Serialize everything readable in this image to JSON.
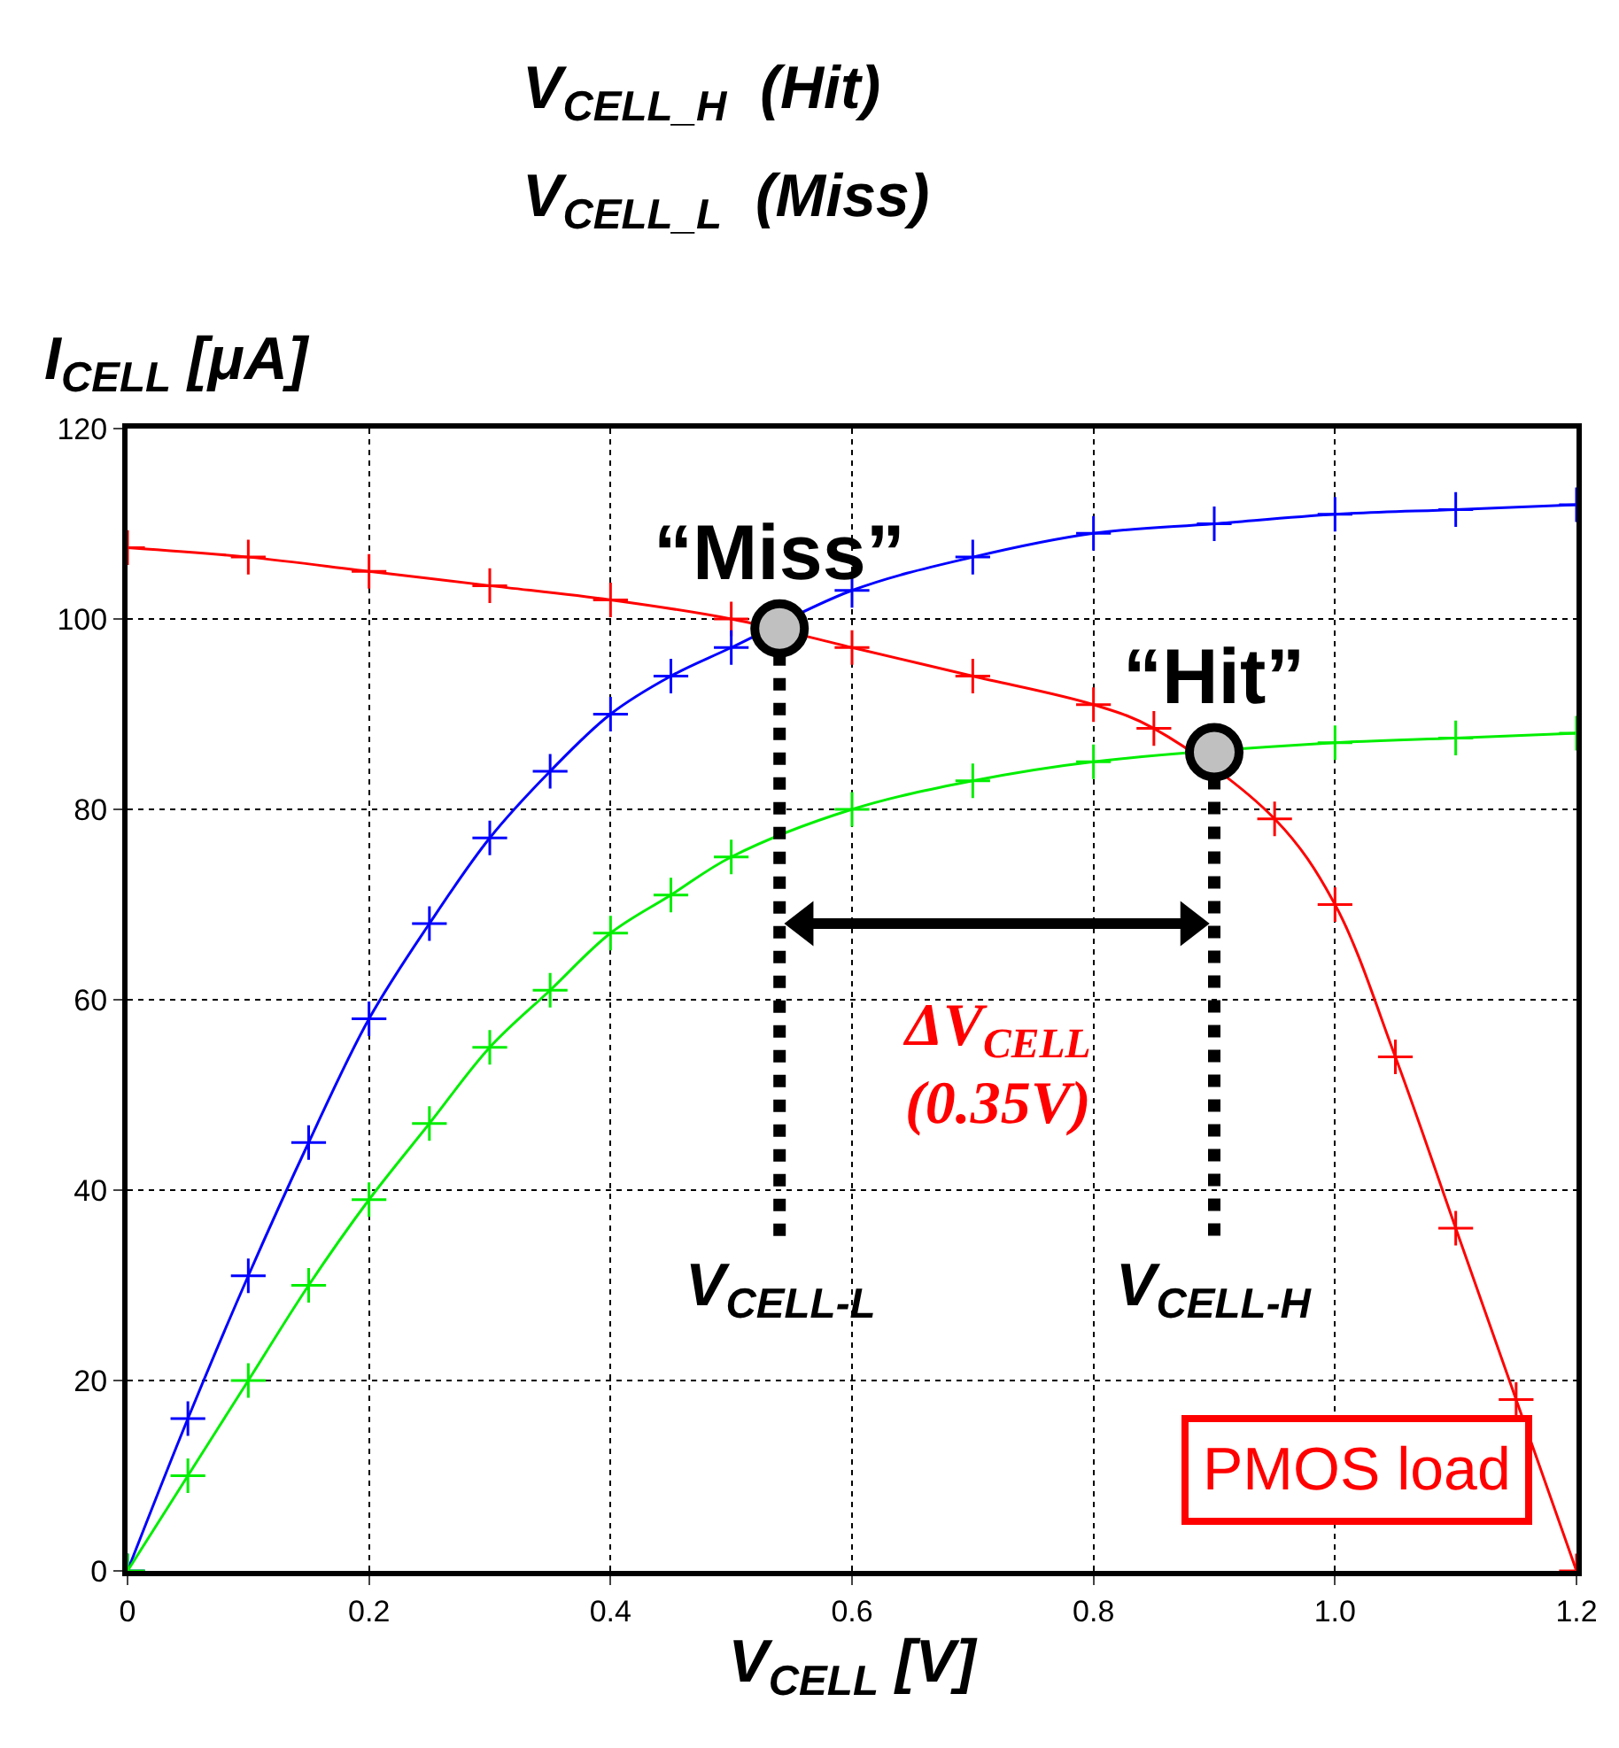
{
  "chart_data": {
    "type": "line",
    "xlabel": "V$_{CELL}$ [V]",
    "ylabel": "I$_{CELL}$ [μA]",
    "xlim": [
      0,
      1.2
    ],
    "ylim": [
      0,
      120
    ],
    "xticks": [
      0,
      0.2,
      0.4,
      0.6,
      0.8,
      {
        "value": 1.0,
        "label": "1.0"
      },
      1.2
    ],
    "yticks": [
      0,
      20,
      40,
      60,
      80,
      100,
      120
    ],
    "grid": true,
    "marker": "cross",
    "series": [
      {
        "color": "#ff0000",
        "x": [
          0,
          0.1,
          0.2,
          0.3,
          0.4,
          0.5,
          0.6,
          0.7,
          0.8,
          0.85,
          0.95,
          1.0,
          1.05,
          1.1,
          1.15,
          1.2
        ],
        "values": [
          107.5,
          106.5,
          105,
          103.5,
          102,
          100,
          97,
          94,
          91,
          88.5,
          79,
          70,
          54,
          36,
          18,
          0
        ]
      },
      {
        "color": "#0000ff",
        "x": [
          0,
          0.05,
          0.1,
          0.15,
          0.2,
          0.25,
          0.3,
          0.35,
          0.4,
          0.45,
          0.5,
          0.6,
          0.7,
          0.8,
          0.9,
          1.0,
          1.1,
          1.2
        ],
        "values": [
          0,
          16,
          31,
          45,
          58,
          68,
          77,
          84,
          90,
          94,
          97,
          103,
          106.5,
          109,
          110,
          111,
          111.5,
          112
        ]
      },
      {
        "color": "#00ee00",
        "x": [
          0,
          0.05,
          0.1,
          0.15,
          0.2,
          0.25,
          0.3,
          0.35,
          0.4,
          0.45,
          0.5,
          0.6,
          0.7,
          0.8,
          1.0,
          1.1,
          1.2
        ],
        "values": [
          0,
          10,
          20,
          30,
          39,
          47,
          55,
          61,
          67,
          71,
          75,
          80,
          83,
          85,
          87,
          87.5,
          88
        ]
      },
      {
        "type": "line",
        "marker": "none",
        "color": "#000000",
        "line_style": "dotted",
        "x": [
          0.54,
          0.54
        ],
        "values": [
          99,
          35
        ]
      },
      {
        "type": "line",
        "marker": "none",
        "color": "#000000",
        "line_style": "dotted",
        "x": [
          0.9,
          0.9
        ],
        "values": [
          86,
          35
        ]
      },
      {
        "type": "line",
        "marker": "triangle",
        "color": "#000000",
        "x": [
          0.56,
          0.88
        ],
        "values": [
          68,
          68
        ]
      },
      {
        "type": "scatter",
        "color": "#c0c0c0",
        "marker": "circle",
        "x": [
          0.54,
          0.9
        ],
        "values": [
          99,
          86
        ]
      }
    ],
    "annotations": [
      {
        "text": "“Miss”",
        "x": 0.54,
        "y": 99
      },
      {
        "text": "“Hit”",
        "x": 0.9,
        "y": 86
      },
      {
        "text": "ΔV$_{CELL}$\n(0.35V)",
        "x": 0.72,
        "y": 68
      },
      {
        "text": "V$_{CELL-L}$",
        "x": 0.54,
        "y": 35
      },
      {
        "text": "V$_{CELL-H}$",
        "x": 0.9,
        "y": 35
      },
      "PMOS load",
      "V$_{CELL_H}$  (Hit)",
      "V$_{CELL_L}$  (Miss)"
    ]
  }
}
